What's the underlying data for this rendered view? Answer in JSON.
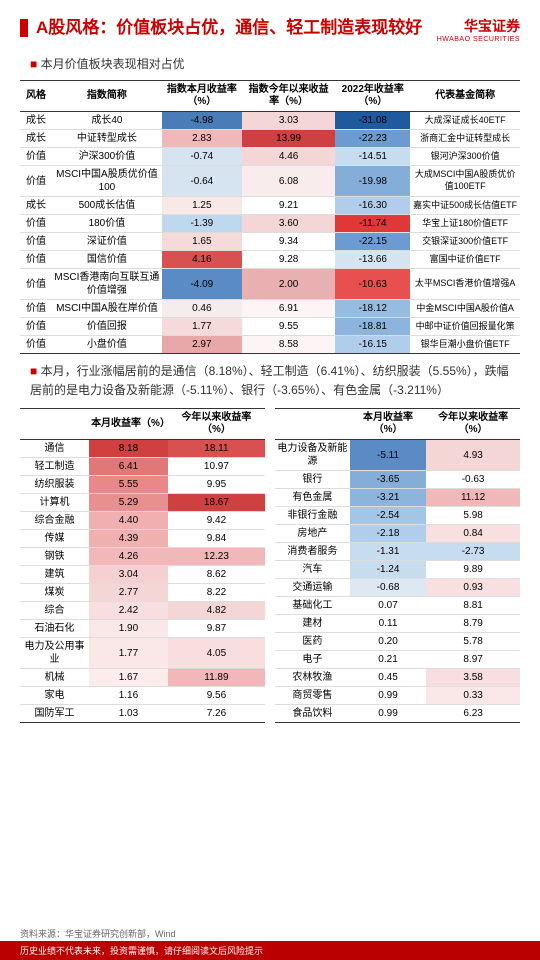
{
  "brand": {
    "cn": "华宝证券",
    "en": "HWABAO SECURITIES"
  },
  "title": "A股风格：价值板块占优，通信、轻工制造表现较好",
  "bullet1": "本月价值板块表现相对占优",
  "bullet2": "本月，行业涨幅居前的是通信（8.18%）、轻工制造（6.41%）、纺织服装（5.55%），跌幅居前的是电力设备及新能源（-5.11%）、银行（-3.65%）、有色金属（-3.211%）",
  "table1": {
    "headers": [
      "风格",
      "指数简称",
      "指数本月收益率（%）",
      "指数今年以来收益率（%）",
      "2022年收益率（%）",
      "代表基金简称"
    ],
    "rows": [
      {
        "c": [
          "成长",
          "成长40",
          "-4.98",
          "3.03",
          "-31.08",
          "大成深证成长40ETF"
        ],
        "bg": [
          "",
          "",
          "#4a7db8",
          "#f5d6d6",
          "#1f5a9e",
          ""
        ]
      },
      {
        "c": [
          "成长",
          "中证转型成长",
          "2.83",
          "13.99",
          "-22.23",
          "浙商汇金中证转型成长"
        ],
        "bg": [
          "",
          "",
          "#f0b8b8",
          "#d04040",
          "#6b9bd1",
          ""
        ]
      },
      {
        "c": [
          "价值",
          "沪深300价值",
          "-0.74",
          "4.46",
          "-14.51",
          "银河沪深300价值"
        ],
        "bg": [
          "",
          "",
          "#d6e4f2",
          "#f5d6d6",
          "#c8dcf0",
          ""
        ]
      },
      {
        "c": [
          "价值",
          "MSCI中国A股质优价值100",
          "-0.64",
          "6.08",
          "-19.98",
          "大成MSCI中国A股质优价值100ETF"
        ],
        "bg": [
          "",
          "",
          "#d6e4f2",
          "#f9ecec",
          "#84aed8",
          ""
        ]
      },
      {
        "c": [
          "成长",
          "500成长估值",
          "1.25",
          "9.21",
          "-16.30",
          "嘉实中证500成长估值ETF"
        ],
        "bg": [
          "",
          "",
          "#f9e8e8",
          "",
          "#b0ceec",
          ""
        ]
      },
      {
        "c": [
          "价值",
          "180价值",
          "-1.39",
          "3.60",
          "-11.74",
          "华宝上证180价值ETF"
        ],
        "bg": [
          "",
          "",
          "#c0d8ee",
          "#f5d6d6",
          "#e03838",
          ""
        ]
      },
      {
        "c": [
          "价值",
          "深证价值",
          "1.65",
          "9.34",
          "-22.15",
          "交银深证300价值ETF"
        ],
        "bg": [
          "",
          "",
          "#f5dada",
          "",
          "#6b9bd1",
          ""
        ]
      },
      {
        "c": [
          "价值",
          "国信价值",
          "4.16",
          "9.28",
          "-13.66",
          "富国中证价值ETF"
        ],
        "bg": [
          "",
          "",
          "#d85050",
          "",
          "#d6e4f2",
          ""
        ]
      },
      {
        "c": [
          "价值",
          "MSCI香港南向互联互通价值增强",
          "-4.09",
          "2.00",
          "-10.63",
          "太平MSCI香港价值增强A"
        ],
        "bg": [
          "",
          "",
          "#5a8bc4",
          "#e8b0b0",
          "#e85050",
          ""
        ]
      },
      {
        "c": [
          "价值",
          "MSCI中国A股在岸价值",
          "0.46",
          "6.91",
          "-18.12",
          "中金MSCI中国A股价值A"
        ],
        "bg": [
          "",
          "",
          "#f5ecec",
          "#fdf5f5",
          "#96bce0",
          ""
        ]
      },
      {
        "c": [
          "价值",
          "价值回报",
          "1.77",
          "9.55",
          "-18.81",
          "中邮中证价值回报量化策"
        ],
        "bg": [
          "",
          "",
          "#f5dada",
          "",
          "#8cb4dc",
          ""
        ]
      },
      {
        "c": [
          "价值",
          "小盘价值",
          "2.97",
          "8.58",
          "-16.15",
          "银华巨潮小盘价值ETF"
        ],
        "bg": [
          "",
          "",
          "#e8a8a8",
          "#fdf5f5",
          "#b0ceec",
          ""
        ]
      }
    ]
  },
  "table2": {
    "headers": [
      "",
      "本月收益率（%）",
      "今年以来收益率（%）"
    ],
    "left": [
      {
        "c": [
          "通信",
          "8.18",
          "18.11"
        ],
        "bg": [
          "",
          "#d04040",
          "#d85050"
        ]
      },
      {
        "c": [
          "轻工制造",
          "6.41",
          "10.97"
        ],
        "bg": [
          "",
          "#e07878",
          ""
        ]
      },
      {
        "c": [
          "纺织服装",
          "5.55",
          "9.95"
        ],
        "bg": [
          "",
          "#e88888",
          ""
        ]
      },
      {
        "c": [
          "计算机",
          "5.29",
          "18.67"
        ],
        "bg": [
          "",
          "#e89090",
          "#d04040"
        ]
      },
      {
        "c": [
          "综合金融",
          "4.40",
          "9.42"
        ],
        "bg": [
          "",
          "#f0b0b0",
          ""
        ]
      },
      {
        "c": [
          "传媒",
          "4.39",
          "9.84"
        ],
        "bg": [
          "",
          "#f0b0b0",
          ""
        ]
      },
      {
        "c": [
          "钢铁",
          "4.26",
          "12.23"
        ],
        "bg": [
          "",
          "#f0b8b8",
          "#f0b8b8"
        ]
      },
      {
        "c": [
          "建筑",
          "3.04",
          "8.62"
        ],
        "bg": [
          "",
          "#f5d0d0",
          ""
        ]
      },
      {
        "c": [
          "煤炭",
          "2.77",
          "8.22"
        ],
        "bg": [
          "",
          "#f5d6d6",
          ""
        ]
      },
      {
        "c": [
          "综合",
          "2.42",
          "4.82"
        ],
        "bg": [
          "",
          "#f8dede",
          "#f5d6d6"
        ]
      },
      {
        "c": [
          "石油石化",
          "1.90",
          "9.87"
        ],
        "bg": [
          "",
          "#fae8e8",
          ""
        ]
      },
      {
        "c": [
          "电力及公用事业",
          "1.77",
          "4.05"
        ],
        "bg": [
          "",
          "#fae8e8",
          "#f8dede"
        ]
      },
      {
        "c": [
          "机械",
          "1.67",
          "11.89"
        ],
        "bg": [
          "",
          "#fcecec",
          "#f0b8b8"
        ]
      },
      {
        "c": [
          "家电",
          "1.16",
          "9.56"
        ],
        "bg": [
          "",
          "",
          ""
        ]
      },
      {
        "c": [
          "国防军工",
          "1.03",
          "7.26"
        ],
        "bg": [
          "",
          "",
          ""
        ]
      }
    ],
    "right": [
      {
        "c": [
          "电力设备及新能源",
          "-5.11",
          "4.93"
        ],
        "bg": [
          "",
          "#5a8bc4",
          "#f5d6d6"
        ]
      },
      {
        "c": [
          "银行",
          "-3.65",
          "-0.63"
        ],
        "bg": [
          "",
          "#84aed8",
          ""
        ]
      },
      {
        "c": [
          "有色金属",
          "-3.21",
          "11.12"
        ],
        "bg": [
          "",
          "#8cb4dc",
          "#f0b8b8"
        ]
      },
      {
        "c": [
          "非银行金融",
          "-2.54",
          "5.98"
        ],
        "bg": [
          "",
          "#a4c6e6",
          ""
        ]
      },
      {
        "c": [
          "房地产",
          "-2.18",
          "0.84"
        ],
        "bg": [
          "",
          "#b0ceec",
          "#f8e0e0"
        ]
      },
      {
        "c": [
          "消费者服务",
          "-1.31",
          "-2.73"
        ],
        "bg": [
          "",
          "#c8dcf0",
          "#c8dcf0"
        ]
      },
      {
        "c": [
          "汽车",
          "-1.24",
          "9.89"
        ],
        "bg": [
          "",
          "#c8dcf0",
          ""
        ]
      },
      {
        "c": [
          "交通运输",
          "-0.68",
          "0.93"
        ],
        "bg": [
          "",
          "#dce8f4",
          "#f8e0e0"
        ]
      },
      {
        "c": [
          "基础化工",
          "0.07",
          "8.81"
        ],
        "bg": [
          "",
          "",
          ""
        ]
      },
      {
        "c": [
          "建材",
          "0.11",
          "8.79"
        ],
        "bg": [
          "",
          "",
          ""
        ]
      },
      {
        "c": [
          "医药",
          "0.20",
          "5.78"
        ],
        "bg": [
          "",
          "",
          ""
        ]
      },
      {
        "c": [
          "电子",
          "0.21",
          "8.97"
        ],
        "bg": [
          "",
          "",
          ""
        ]
      },
      {
        "c": [
          "农林牧渔",
          "0.45",
          "3.58"
        ],
        "bg": [
          "",
          "",
          "#f8dede"
        ]
      },
      {
        "c": [
          "商贸零售",
          "0.99",
          "0.33"
        ],
        "bg": [
          "",
          "",
          "#fae8e8"
        ]
      },
      {
        "c": [
          "食品饮料",
          "0.99",
          "6.23"
        ],
        "bg": [
          "",
          "",
          ""
        ]
      }
    ]
  },
  "source": "资料来源：华宝证券研究创新部，Wind",
  "footer": "历史业绩不代表未来，投资需谨慎，请仔细阅读文后风险提示"
}
